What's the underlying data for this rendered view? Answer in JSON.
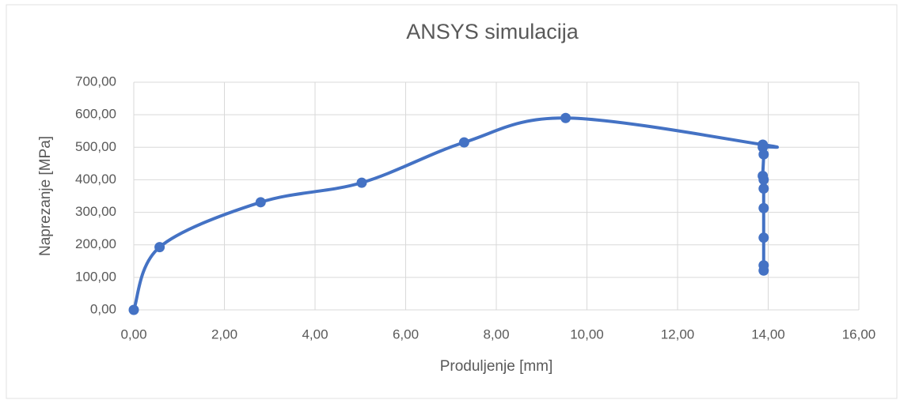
{
  "chart_data": {
    "type": "scatter",
    "title": "ANSYS simulacija",
    "x_label": "Produljenje [mm]",
    "y_label": "Naprezanje [MPa]",
    "smooth": true,
    "grid": true,
    "series": [
      {
        "color": "#4472c4",
        "x": [
          0,
          0.57,
          2.8,
          5.03,
          7.29,
          9.53,
          13.88,
          13.88,
          13.9,
          13.88,
          13.9,
          13.9,
          13.9,
          13.9,
          13.9,
          13.9
        ],
        "values": [
          0,
          193,
          331,
          391,
          515,
          590,
          508,
          500,
          478,
          412,
          400,
          373,
          313,
          222,
          137,
          121
        ]
      }
    ],
    "xlim": [
      0,
      16
    ],
    "xticks": [
      {
        "value": 0,
        "label": "0,00"
      },
      {
        "value": 2,
        "label": "2,00"
      },
      {
        "value": 4,
        "label": "4,00"
      },
      {
        "value": 6,
        "label": "6,00"
      },
      {
        "value": 8,
        "label": "8,00"
      },
      {
        "value": 10,
        "label": "10,00"
      },
      {
        "value": 12,
        "label": "12,00"
      },
      {
        "value": 14,
        "label": "14,00"
      },
      {
        "value": 16,
        "label": "16,00"
      }
    ],
    "ylim": [
      0,
      700
    ],
    "yticks": [
      {
        "value": 0,
        "label": "0,00"
      },
      {
        "value": 100,
        "label": "100,00"
      },
      {
        "value": 200,
        "label": "200,00"
      },
      {
        "value": 300,
        "label": "300,00"
      },
      {
        "value": 400,
        "label": "400,00"
      },
      {
        "value": 500,
        "label": "500,00"
      },
      {
        "value": 600,
        "label": "600,00"
      },
      {
        "value": 700,
        "label": "700,00"
      }
    ]
  }
}
